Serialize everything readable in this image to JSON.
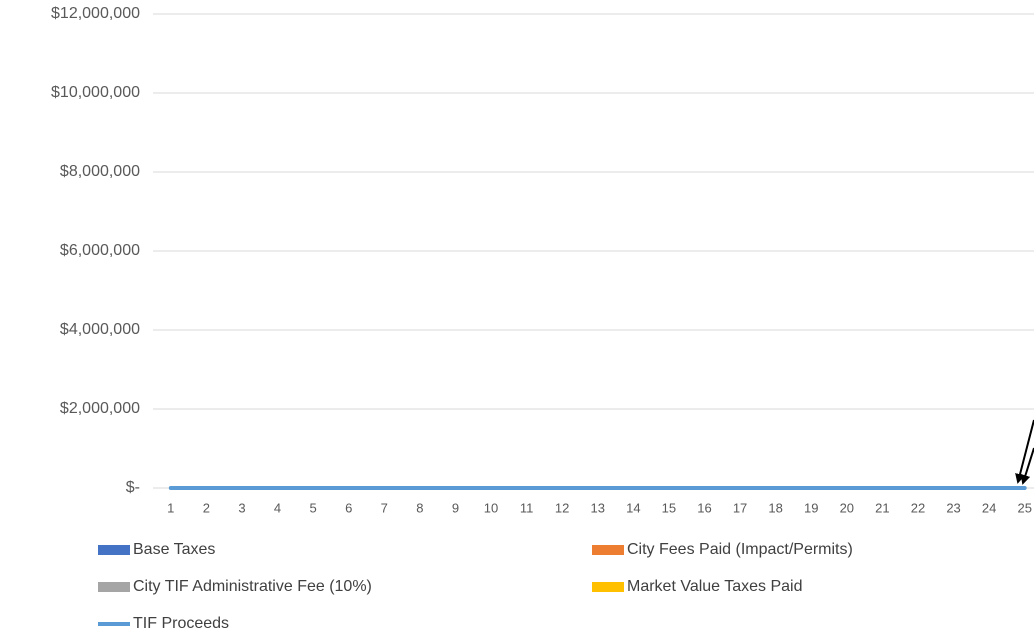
{
  "chart_data": {
    "type": "stacked_bar_line",
    "categories": [
      "1",
      "2",
      "3",
      "4",
      "5",
      "6",
      "7",
      "8",
      "9",
      "10",
      "11",
      "12",
      "13",
      "14",
      "15",
      "16",
      "17",
      "18",
      "19",
      "20",
      "21",
      "22",
      "23",
      "24",
      "25"
    ],
    "series": [
      {
        "name": "Base Taxes",
        "type": "bar",
        "color": "#4472c4",
        "values": [
          0,
          0,
          0,
          0,
          0,
          0,
          0,
          0,
          0,
          0,
          0,
          0,
          0,
          0,
          0,
          0,
          0,
          0,
          0,
          0,
          0,
          0,
          0,
          0,
          0
        ]
      },
      {
        "name": "City Fees Paid (Impact/Permits)",
        "type": "bar",
        "color": "#ed7d31",
        "values": [
          0,
          0,
          0,
          0,
          0,
          0,
          0,
          0,
          0,
          0,
          0,
          0,
          0,
          0,
          0,
          0,
          0,
          0,
          0,
          0,
          0,
          0,
          0,
          0,
          0
        ]
      },
      {
        "name": "City TIF Administrative Fee (10%)",
        "type": "bar",
        "color": "#a5a5a5",
        "values": [
          0,
          0,
          0,
          0,
          0,
          0,
          0,
          0,
          0,
          0,
          0,
          0,
          0,
          0,
          0,
          0,
          0,
          0,
          0,
          0,
          0,
          0,
          0,
          0,
          0
        ]
      },
      {
        "name": "Market Value Taxes Paid",
        "type": "bar",
        "color": "#ffc000",
        "values": [
          0,
          0,
          0,
          0,
          0,
          0,
          0,
          0,
          0,
          0,
          0,
          0,
          0,
          0,
          0,
          0,
          0,
          0,
          0,
          0,
          0,
          0,
          0,
          0,
          0
        ]
      },
      {
        "name": "TIF Proceeds",
        "type": "line",
        "color": "#5b9bd5",
        "values": [
          0,
          0,
          0,
          0,
          0,
          0,
          0,
          0,
          0,
          0,
          0,
          0,
          0,
          0,
          0,
          0,
          0,
          0,
          0,
          0,
          0,
          0,
          0,
          0,
          0
        ]
      }
    ],
    "ylim": [
      0,
      12000000
    ],
    "yticks": [
      {
        "value": 0,
        "label": "$-"
      },
      {
        "value": 2000000,
        "label": "$2,000,000"
      },
      {
        "value": 4000000,
        "label": "$4,000,000"
      },
      {
        "value": 6000000,
        "label": "$6,000,000"
      },
      {
        "value": 8000000,
        "label": "$8,000,000"
      },
      {
        "value": 10000000,
        "label": "$10,000,000"
      },
      {
        "value": 12000000,
        "label": "$12,000,000"
      }
    ],
    "grid": true,
    "legend": "bottom"
  }
}
